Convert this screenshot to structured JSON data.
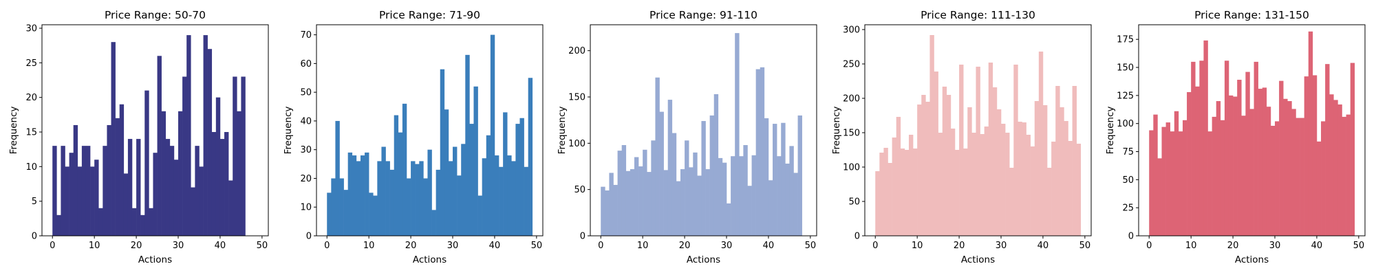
{
  "chart_data": [
    {
      "type": "bar",
      "title": "Price Range: 50-70",
      "xlabel": "Actions",
      "ylabel": "Frequency",
      "color": "#393885",
      "xlim": [
        -2.5,
        51.5
      ],
      "ylim": [
        0,
        30.5
      ],
      "xticks": [
        0,
        10,
        20,
        30,
        40,
        50
      ],
      "yticks": [
        0,
        5,
        10,
        15,
        20,
        25,
        30
      ],
      "x": [
        0,
        1,
        2,
        3,
        4,
        5,
        6,
        7,
        8,
        9,
        10,
        11,
        12,
        13,
        14,
        15,
        16,
        17,
        18,
        19,
        20,
        21,
        22,
        23,
        24,
        25,
        26,
        27,
        28,
        29,
        30,
        31,
        32,
        33,
        34,
        35,
        36,
        37,
        38,
        39,
        40,
        41,
        42,
        43,
        44,
        45,
        46,
        47,
        48
      ],
      "values": [
        13,
        3,
        13,
        10,
        12,
        16,
        10,
        13,
        13,
        10,
        11,
        4,
        13,
        16,
        28,
        17,
        19,
        9,
        14,
        4,
        14,
        3,
        21,
        4,
        12,
        26,
        18,
        14,
        13,
        11,
        18,
        23,
        29,
        7,
        13,
        10,
        29,
        27,
        15,
        20,
        14,
        15,
        8,
        23,
        18,
        23,
        0,
        0,
        0
      ]
    },
    {
      "type": "bar",
      "title": "Price Range: 71-90",
      "xlabel": "Actions",
      "ylabel": "Frequency",
      "color": "#3a7ebb",
      "xlim": [
        -2.5,
        51.5
      ],
      "ylim": [
        0,
        73.5
      ],
      "xticks": [
        0,
        10,
        20,
        30,
        40,
        50
      ],
      "yticks": [
        0,
        10,
        20,
        30,
        40,
        50,
        60,
        70
      ],
      "x": [
        0,
        1,
        2,
        3,
        4,
        5,
        6,
        7,
        8,
        9,
        10,
        11,
        12,
        13,
        14,
        15,
        16,
        17,
        18,
        19,
        20,
        21,
        22,
        23,
        24,
        25,
        26,
        27,
        28,
        29,
        30,
        31,
        32,
        33,
        34,
        35,
        36,
        37,
        38,
        39,
        40,
        41,
        42,
        43,
        44,
        45,
        46,
        47,
        48
      ],
      "values": [
        15,
        20,
        40,
        20,
        16,
        29,
        28,
        26,
        28,
        29,
        15,
        14,
        26,
        31,
        26,
        23,
        42,
        36,
        46,
        20,
        26,
        25,
        26,
        20,
        30,
        9,
        23,
        58,
        44,
        26,
        31,
        21,
        32,
        63,
        39,
        52,
        14,
        27,
        35,
        70,
        28,
        24,
        43,
        28,
        26,
        39,
        41,
        24,
        55
      ]
    },
    {
      "type": "bar",
      "title": "Price Range: 91-110",
      "xlabel": "Actions",
      "ylabel": "Frequency",
      "color": "#97aad3",
      "xlim": [
        -2.5,
        51.5
      ],
      "ylim": [
        0,
        228
      ],
      "xticks": [
        0,
        10,
        20,
        30,
        40,
        50
      ],
      "yticks": [
        0,
        50,
        100,
        150,
        200
      ],
      "x": [
        0,
        1,
        2,
        3,
        4,
        5,
        6,
        7,
        8,
        9,
        10,
        11,
        12,
        13,
        14,
        15,
        16,
        17,
        18,
        19,
        20,
        21,
        22,
        23,
        24,
        25,
        26,
        27,
        28,
        29,
        30,
        31,
        32,
        33,
        34,
        35,
        36,
        37,
        38,
        39,
        40,
        41,
        42,
        43,
        44,
        45,
        46,
        47,
        48
      ],
      "values": [
        53,
        49,
        68,
        55,
        92,
        98,
        70,
        72,
        85,
        75,
        93,
        69,
        103,
        171,
        134,
        71,
        147,
        111,
        59,
        72,
        103,
        74,
        90,
        65,
        124,
        72,
        130,
        153,
        84,
        79,
        35,
        86,
        219,
        86,
        98,
        54,
        87,
        180,
        182,
        127,
        60,
        121,
        86,
        122,
        78,
        97,
        68,
        130,
        0
      ]
    },
    {
      "type": "bar",
      "title": "Price Range: 111-130",
      "xlabel": "Actions",
      "ylabel": "Frequency",
      "color": "#f0bcbc",
      "xlim": [
        -2.5,
        51.5
      ],
      "ylim": [
        0,
        307
      ],
      "xticks": [
        0,
        10,
        20,
        30,
        40,
        50
      ],
      "yticks": [
        0,
        50,
        100,
        150,
        200,
        250,
        300
      ],
      "x": [
        0,
        1,
        2,
        3,
        4,
        5,
        6,
        7,
        8,
        9,
        10,
        11,
        12,
        13,
        14,
        15,
        16,
        17,
        18,
        19,
        20,
        21,
        22,
        23,
        24,
        25,
        26,
        27,
        28,
        29,
        30,
        31,
        32,
        33,
        34,
        35,
        36,
        37,
        38,
        39,
        40,
        41,
        42,
        43,
        44,
        45,
        46,
        47,
        48
      ],
      "values": [
        94,
        121,
        128,
        106,
        143,
        173,
        127,
        125,
        147,
        127,
        191,
        205,
        195,
        292,
        239,
        150,
        217,
        205,
        156,
        125,
        249,
        127,
        187,
        150,
        246,
        148,
        159,
        252,
        216,
        184,
        163,
        150,
        99,
        249,
        166,
        165,
        147,
        130,
        196,
        268,
        190,
        99,
        137,
        218,
        187,
        167,
        138,
        218,
        134
      ]
    },
    {
      "type": "bar",
      "title": "Price Range: 131-150",
      "xlabel": "Actions",
      "ylabel": "Frequency",
      "color": "#dd6475",
      "xlim": [
        -2.5,
        51.5
      ],
      "ylim": [
        0,
        188
      ],
      "xticks": [
        0,
        10,
        20,
        30,
        40,
        50
      ],
      "yticks": [
        0,
        25,
        50,
        75,
        100,
        125,
        150,
        175
      ],
      "x": [
        0,
        1,
        2,
        3,
        4,
        5,
        6,
        7,
        8,
        9,
        10,
        11,
        12,
        13,
        14,
        15,
        16,
        17,
        18,
        19,
        20,
        21,
        22,
        23,
        24,
        25,
        26,
        27,
        28,
        29,
        30,
        31,
        32,
        33,
        34,
        35,
        36,
        37,
        38,
        39,
        40,
        41,
        42,
        43,
        44,
        45,
        46,
        47,
        48
      ],
      "values": [
        94,
        108,
        69,
        97,
        101,
        93,
        111,
        93,
        103,
        128,
        155,
        133,
        156,
        174,
        93,
        106,
        120,
        103,
        156,
        125,
        124,
        139,
        107,
        146,
        113,
        155,
        131,
        132,
        115,
        98,
        102,
        138,
        122,
        120,
        113,
        105,
        105,
        142,
        182,
        143,
        84,
        102,
        153,
        126,
        121,
        117,
        106,
        108,
        154
      ]
    }
  ]
}
